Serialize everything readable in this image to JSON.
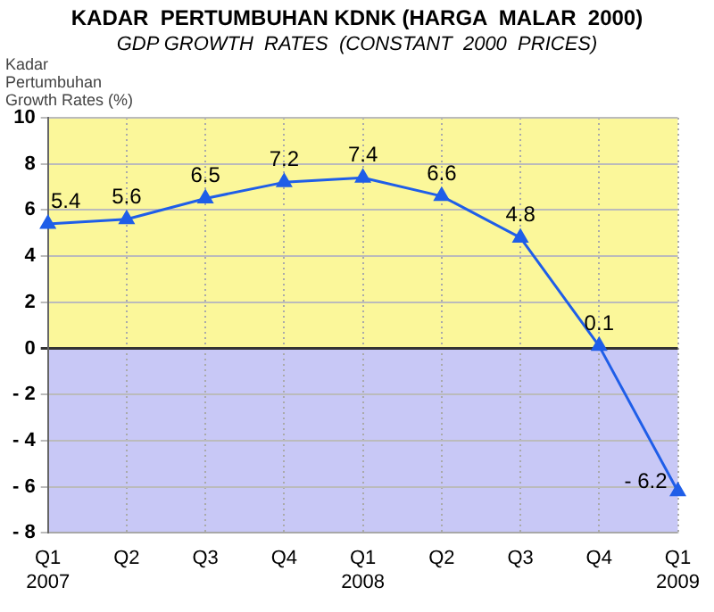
{
  "chart_data": {
    "type": "line",
    "title": "KADAR  PERTUMBUHAN KDNK (HARGA  MALAR  2000)",
    "subtitle": "GDP GROWTH  RATES  (CONSTANT  2000  PRICES)",
    "ylabel": "Kadar\nPertumbuhan\nGrowth Rates (%)",
    "categories": [
      "Q1\n2007",
      "Q2",
      "Q3",
      "Q4",
      "Q1\n2008",
      "Q2",
      "Q3",
      "Q4",
      "Q1\n2009"
    ],
    "series": [
      {
        "color": "#1f5ee8",
        "values": [
          5.4,
          5.6,
          6.5,
          7.2,
          7.4,
          6.6,
          4.8,
          0.1,
          -6.2
        ],
        "value_labels": [
          "5.4",
          "5.6",
          "6.5",
          "7.2",
          "7.4",
          "6.6",
          "4.8",
          "0.1",
          "- 6.2"
        ]
      }
    ],
    "ylim": [
      -8,
      10
    ],
    "yticks": [
      {
        "value": -8,
        "label": "- 8"
      },
      {
        "value": -6,
        "label": "- 6"
      },
      {
        "value": -4,
        "label": "- 4"
      },
      {
        "value": -2,
        "label": "- 2"
      },
      0,
      2,
      4,
      6,
      8,
      10
    ],
    "bands": [
      {
        "axis": "y",
        "from": 0,
        "to": 10,
        "color": "#fbf79a"
      },
      {
        "axis": "y",
        "from": -8,
        "to": 0,
        "color": "#c8c8f6"
      }
    ],
    "grid": true,
    "legend": false,
    "marker": "triangle",
    "line_style": "solid"
  }
}
